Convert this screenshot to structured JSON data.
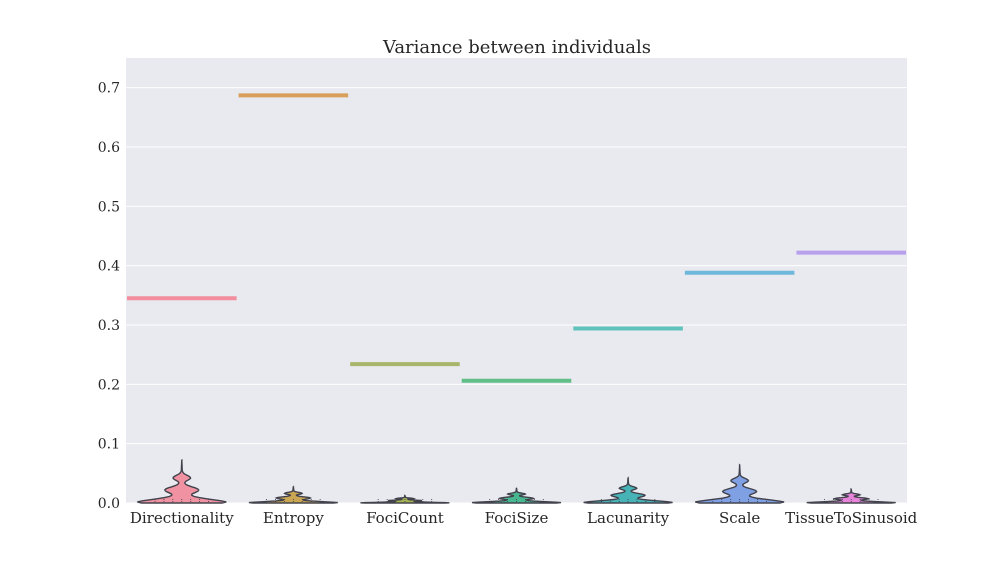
{
  "chart_data": {
    "type": "violin",
    "title": "Variance between individuals",
    "xlabel": "",
    "ylabel": "",
    "ylim": [
      0,
      0.75
    ],
    "yticks": [
      "0.0",
      "0.1",
      "0.2",
      "0.3",
      "0.4",
      "0.5",
      "0.6",
      "0.7"
    ],
    "grid": true,
    "categories": [
      "Directionality",
      "Entropy",
      "FociCount",
      "FociSize",
      "Lacunarity",
      "Scale",
      "TissueToSinusoid"
    ],
    "reference_lines": [
      0.345,
      0.687,
      0.234,
      0.206,
      0.294,
      0.388,
      0.422
    ],
    "violin_max": [
      0.073,
      0.028,
      0.013,
      0.026,
      0.043,
      0.065,
      0.024
    ],
    "colors": [
      "#f28e9e",
      "#d9a05c",
      "#a8b56a",
      "#5fbf87",
      "#5fc2bb",
      "#6db8db",
      "#b9a0ed"
    ],
    "violin_colors": [
      "#f28e9e",
      "#c9a24a",
      "#a3b04b",
      "#3eb58a",
      "#3fb1b4",
      "#7a9ee4",
      "#e57fd8"
    ],
    "background": "#e9e9f0"
  }
}
